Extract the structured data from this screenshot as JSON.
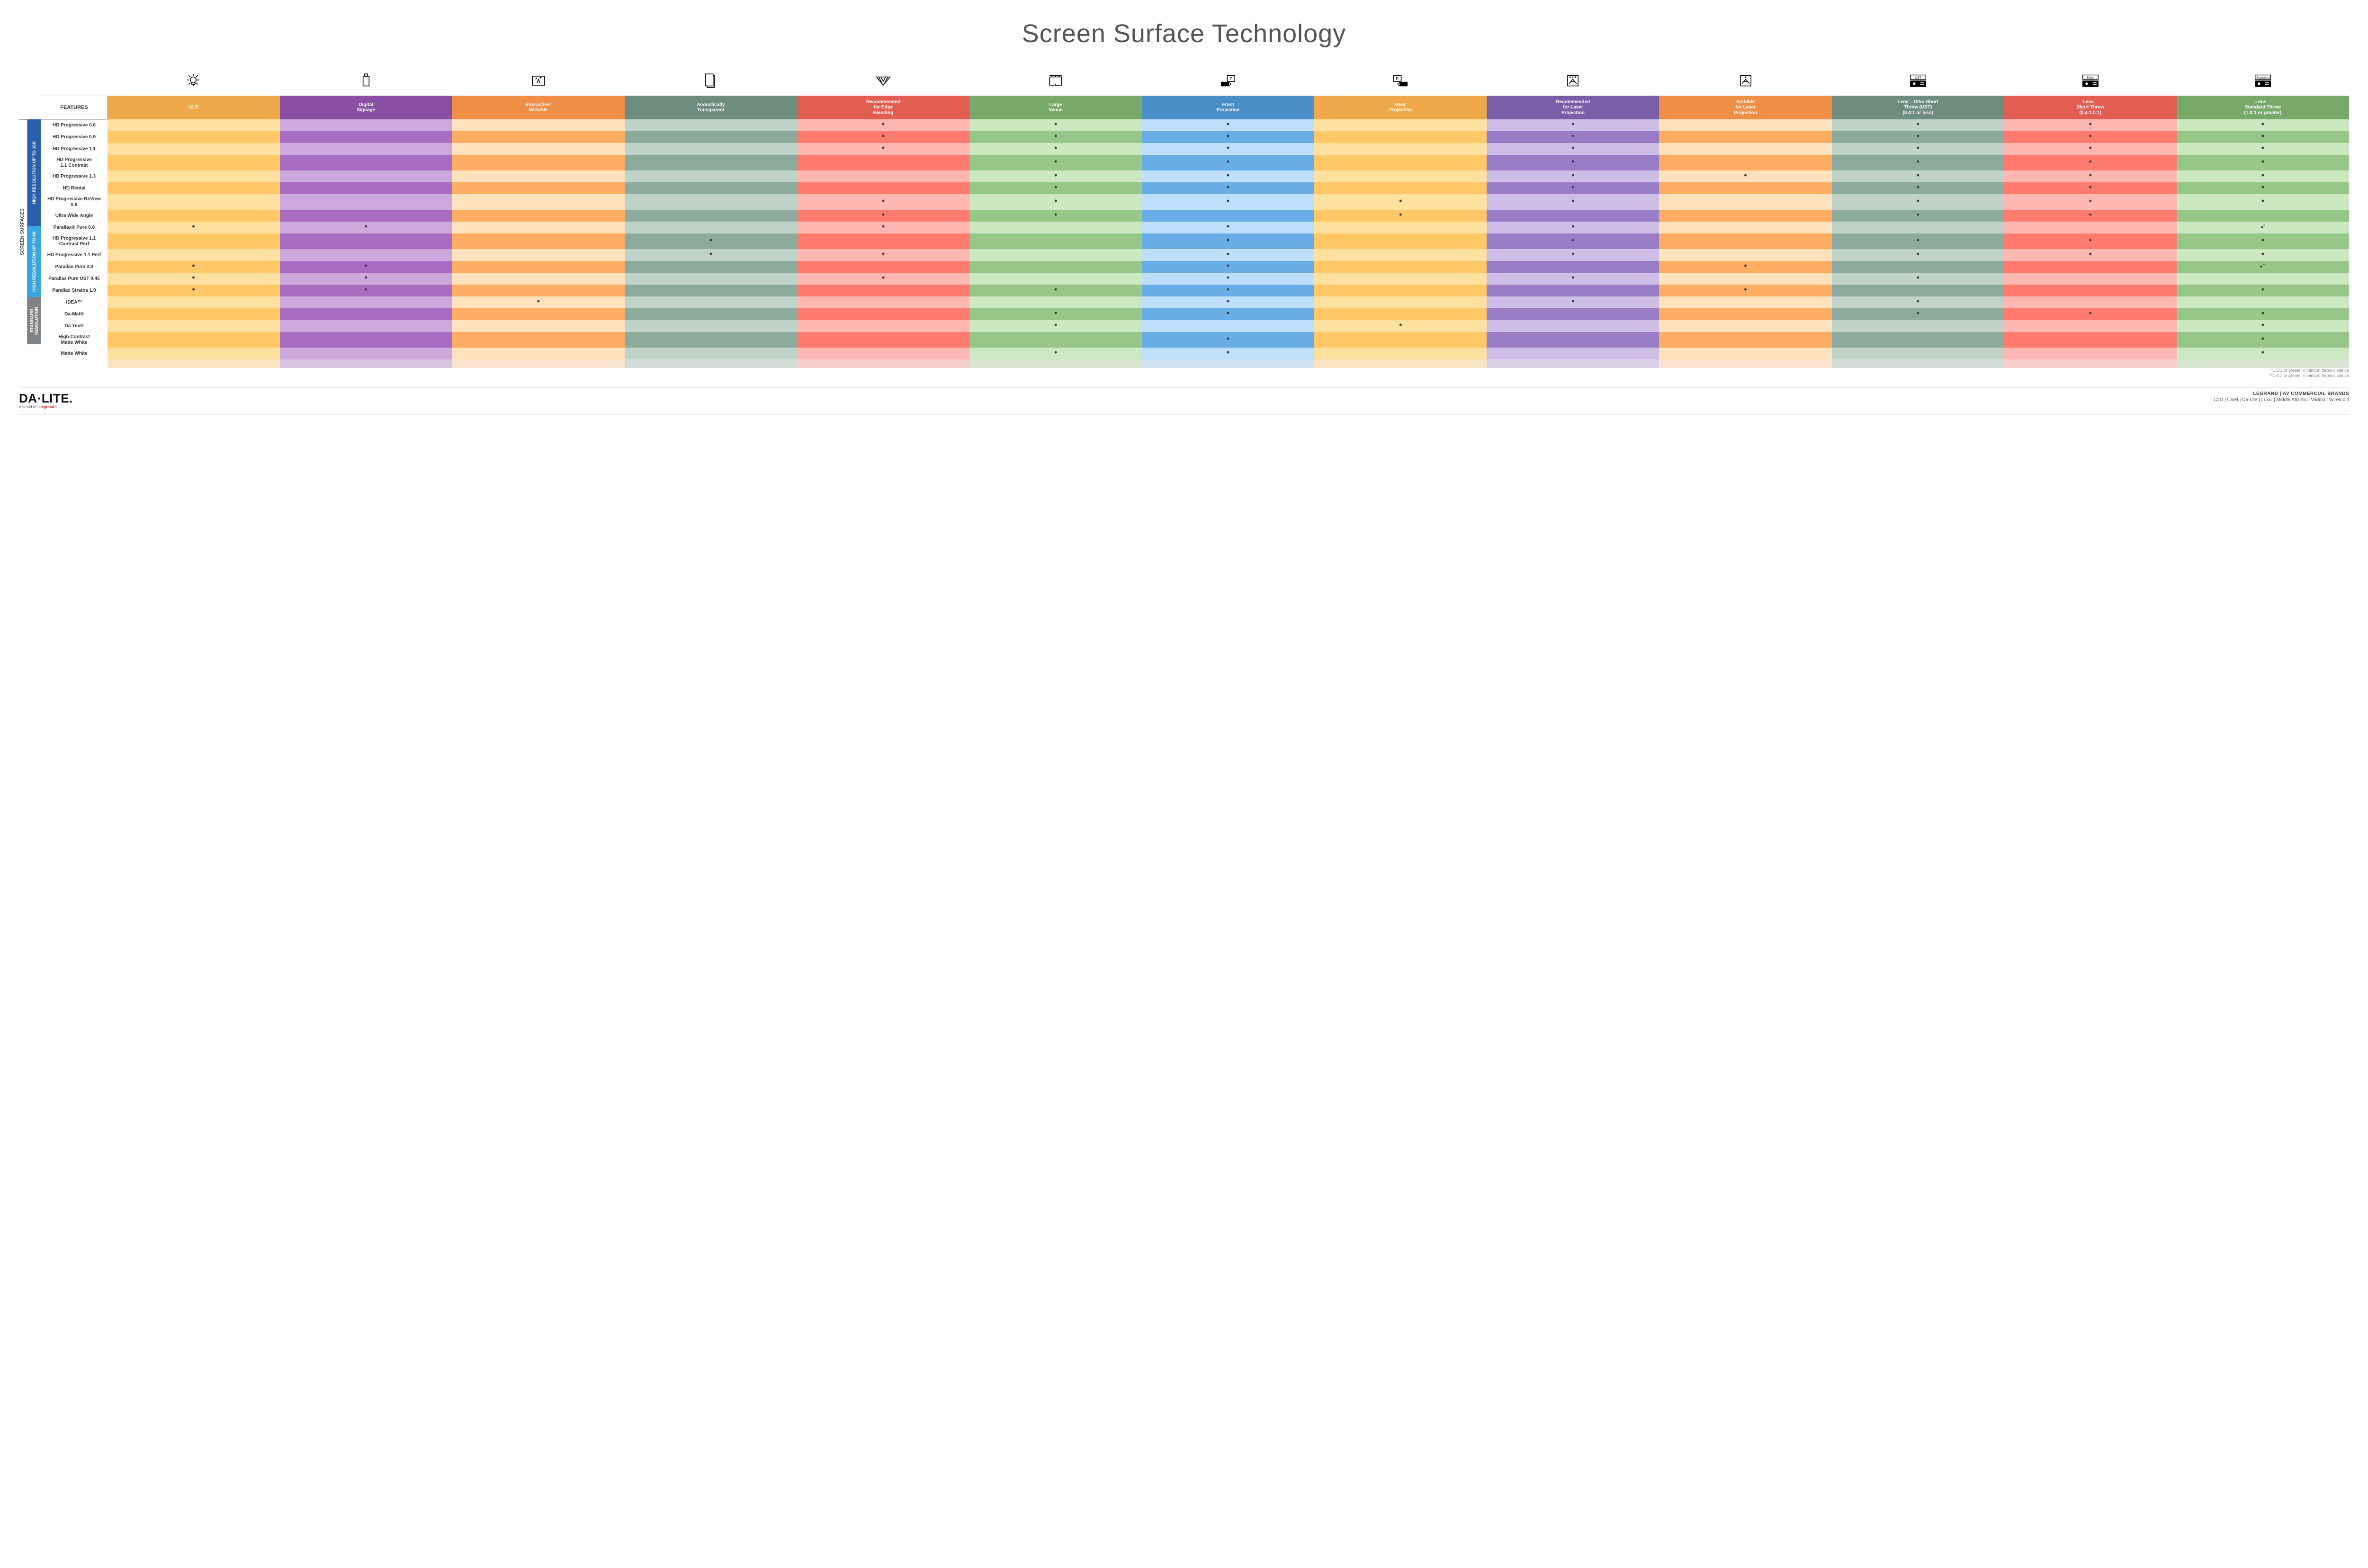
{
  "title": "Screen Surface Technology",
  "columns": [
    {
      "key": "alr",
      "label": "ALR",
      "color": "#f0a94a",
      "alt": "#f5c886"
    },
    {
      "key": "signage",
      "label": "Digital\nSignage",
      "color": "#8a4fa3",
      "alt": "#b38fc4"
    },
    {
      "key": "writable",
      "label": "Interactive/\nWritable",
      "color": "#ef8f45",
      "alt": "#f6c9a2"
    },
    {
      "key": "acoustic",
      "label": "Acoustically\nTransparent",
      "color": "#6f8d7e",
      "alt": "#a7bab0"
    },
    {
      "key": "edge",
      "label": "Recommended\nfor Edge\nBlending",
      "color": "#e25d52",
      "alt": "#ef9f98"
    },
    {
      "key": "large",
      "label": "Large\nVenue",
      "color": "#79a96a",
      "alt": "#b3cfa8"
    },
    {
      "key": "front",
      "label": "Front\nProjection",
      "color": "#4a8fc7",
      "alt": "#a5c6e2"
    },
    {
      "key": "rear",
      "label": "Rear\nProjection",
      "color": "#f0a94a",
      "alt": "#f5c886"
    },
    {
      "key": "reclaser",
      "label": "Recommended\nfor Laser\nProjection",
      "color": "#7a5fa8",
      "alt": "#b4a5cf"
    },
    {
      "key": "suitlaser",
      "label": "Suitable\nfor Laser\nProjection",
      "color": "#ef8f45",
      "alt": "#f6c9a2"
    },
    {
      "key": "ust",
      "label": "Lens – Ultra Short\nThrow (UST)\n(0.4:1 or less)",
      "color": "#6f8d7e",
      "alt": "#a7bab0"
    },
    {
      "key": "short",
      "label": "Lens –\nShort Throw\n(0.4-1.0:1)",
      "color": "#e25d52",
      "alt": "#ef9f98"
    },
    {
      "key": "std",
      "label": "Lens –\nStandard Throw\n(1.0:1 or greater)",
      "color": "#79a96a",
      "alt": "#b3cfa8"
    }
  ],
  "groups": [
    {
      "key": "g16k",
      "label": "HIGH RESOLUTION UP TO 16K",
      "color": "#2a5fab",
      "rows": 9
    },
    {
      "key": "g4k",
      "label": "HIGH RESOLUTION UP TO 4K",
      "color": "#3aa6dd",
      "rows": 6
    },
    {
      "key": "gstd",
      "label": "STANDARD\nRESOLUTION",
      "color": "#7f8386",
      "rows": 4
    }
  ],
  "outer_label": "SCREEN SURFACES",
  "features_label": "FEATURES",
  "rows": [
    {
      "name": "HD Progressive 0.6",
      "dots": {
        "edge": "•",
        "large": "•",
        "front": "•",
        "reclaser": "•",
        "ust": "•",
        "short": "•",
        "std": "•"
      }
    },
    {
      "name": "HD Progressive 0.9",
      "dots": {
        "edge": "•",
        "large": "•",
        "front": "•",
        "reclaser": "•",
        "ust": "•",
        "short": "•",
        "std": "•"
      }
    },
    {
      "name": "HD Progressive 1.1",
      "dots": {
        "edge": "•",
        "large": "•",
        "front": "•",
        "reclaser": "•",
        "ust": "•",
        "short": "•",
        "std": "•"
      }
    },
    {
      "name": "HD Progressive\n1.1 Contrast",
      "dots": {
        "large": "•",
        "front": "•",
        "reclaser": "•",
        "ust": "•",
        "short": "•",
        "std": "•"
      }
    },
    {
      "name": "HD Progressive 1.3",
      "dots": {
        "large": "•",
        "front": "•",
        "reclaser": "•",
        "suitlaser": "•",
        "ust": "•",
        "short": "•",
        "std": "•"
      }
    },
    {
      "name": "HD Rental",
      "dots": {
        "large": "•",
        "front": "•",
        "reclaser": "•",
        "ust": "•",
        "short": "•",
        "std": "•"
      }
    },
    {
      "name": "HD Progressive ReView 0.9",
      "dots": {
        "edge": "•",
        "large": "•",
        "front": "•",
        "rear": "•",
        "reclaser": "•",
        "ust": "•",
        "short": "•",
        "std": "•"
      }
    },
    {
      "name": "Ultra Wide Angle",
      "dots": {
        "edge": "•",
        "large": "•",
        "rear": "•",
        "ust": "•",
        "short": "•"
      }
    },
    {
      "name": "Parallax® Pure 0.8",
      "dots": {
        "alr": "•",
        "signage": "•",
        "edge": "•",
        "front": "•",
        "reclaser": "•",
        "std": "•*"
      }
    },
    {
      "name": "HD Progressive 1.1\nContrast Perf",
      "dots": {
        "acoustic": "•",
        "front": "•",
        "reclaser": "•",
        "ust": "•",
        "short": "•",
        "std": "•"
      }
    },
    {
      "name": "HD Progressive 1.1 Perf",
      "dots": {
        "acoustic": "•",
        "edge": "•",
        "front": "•",
        "reclaser": "•",
        "ust": "•",
        "short": "•",
        "std": "•"
      }
    },
    {
      "name": "Parallax Pure 2.3",
      "dots": {
        "alr": "•",
        "signage": "•",
        "front": "•",
        "suitlaser": "•",
        "std": "•**"
      }
    },
    {
      "name": "Parallax Pure UST 0.45",
      "dots": {
        "alr": "•",
        "signage": "•",
        "edge": "•",
        "front": "•",
        "reclaser": "•",
        "ust": "•"
      }
    },
    {
      "name": "Parallax Stratos 1.0",
      "dots": {
        "alr": "•",
        "signage": "•",
        "large": "•",
        "front": "•",
        "suitlaser": "•",
        "std": "•"
      }
    },
    {
      "name": "IDEA™",
      "dots": {
        "writable": "•",
        "front": "•",
        "reclaser": "•",
        "ust": "•"
      }
    },
    {
      "name": "Da-Mat®",
      "dots": {
        "large": "•",
        "front": "•",
        "ust": "•",
        "short": "•",
        "std": "•"
      }
    },
    {
      "name": "Da-Tex®",
      "dots": {
        "large": "•",
        "rear": "•",
        "std": "•"
      }
    },
    {
      "name": "High Contrast\nMatte White",
      "dots": {
        "front": "•",
        "std": "•"
      }
    },
    {
      "name": "Matte White",
      "dots": {
        "large": "•",
        "front": "•",
        "std": "•"
      }
    }
  ],
  "footnotes": [
    "*1.5:1 or greater minimum throw distance",
    "**1.8:1 or greater minimum throw distance"
  ],
  "footer": {
    "logo_main": "DA·LITE.",
    "logo_sub_prefix": "A brand of ",
    "logo_sub_brand": "legrand",
    "right_line1": "LEGRAND | AV COMMERCIAL BRANDS",
    "right_line2": "C2G  |  Chief  |  Da-Lite  |  Luxul  |  Middle Atlantic  |  Vaddio  |  Wiremold"
  },
  "icons_lens": {
    "ust": "UST",
    "short": "Short",
    "std": "Standard"
  }
}
